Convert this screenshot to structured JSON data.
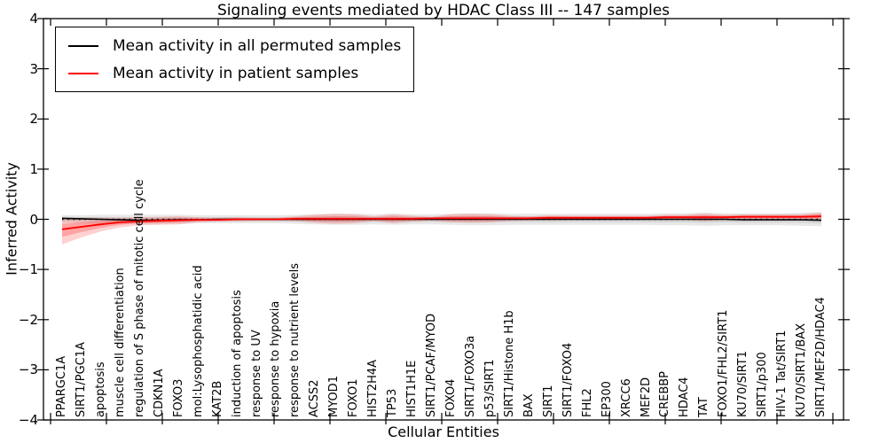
{
  "chart_data": {
    "type": "line",
    "title": "Signaling events mediated by HDAC Class III -- 147 samples",
    "xlabel": "Cellular Entities",
    "ylabel": "Inferred Activity",
    "ylim": [
      -4,
      4
    ],
    "yticks": [
      -4,
      -3,
      -2,
      -1,
      0,
      1,
      2,
      3,
      4
    ],
    "grid": false,
    "legend_position": "upper left",
    "zero_line": {
      "style": "dotted",
      "color": "#000000",
      "y": 0
    },
    "categories": [
      "PPARGC1A",
      "SIRT1/PGC1A",
      "apoptosis",
      "muscle cell differentiation",
      "regulation of S phase of mitotic cell cycle",
      "CDKN1A",
      "FOXO3",
      "mol:Lysophosphatidic acid",
      "KAT2B",
      "induction of apoptosis",
      "response to UV",
      "response to hypoxia",
      "response to nutrient levels",
      "ACSS2",
      "MYOD1",
      "FOXO1",
      "HIST2H4A",
      "TP53",
      "HIST1H1E",
      "SIRT1/PCAF/MYOD",
      "FOXO4",
      "SIRT1/FOXO3a",
      "p53/SIRT1",
      "SIRT1/Histone H1b",
      "BAX",
      "SIRT1",
      "SIRT1/FOXO4",
      "FHL2",
      "EP300",
      "XRCC6",
      "MEF2D",
      "CREBBP",
      "HDAC4",
      "TAT",
      "FOXO1/FHL2/SIRT1",
      "KU70/SIRT1",
      "SIRT1/p300",
      "HIV-1 Tat/SIRT1",
      "KU70/SIRT1/BAX",
      "SIRT1/MEF2D/HDAC4"
    ],
    "series": [
      {
        "name": "Mean activity in all permuted samples",
        "color": "#000000",
        "band_color": "#000000",
        "values": [
          0.02,
          0.01,
          0.0,
          -0.01,
          -0.02,
          -0.02,
          -0.01,
          -0.01,
          0.0,
          0.0,
          0.0,
          0.0,
          0.0,
          0.0,
          0.0,
          0.0,
          0.0,
          0.0,
          0.0,
          0.0,
          0.0,
          0.0,
          0.0,
          0.0,
          0.0,
          0.0,
          0.0,
          0.0,
          0.0,
          0.0,
          0.0,
          0.0,
          0.0,
          0.0,
          0.0,
          -0.01,
          -0.01,
          -0.01,
          -0.01,
          -0.02
        ],
        "band_lower": [
          -0.07,
          -0.08,
          -0.09,
          -0.09,
          -0.09,
          -0.09,
          -0.09,
          -0.08,
          -0.08,
          -0.08,
          -0.08,
          -0.08,
          -0.09,
          -0.1,
          -0.11,
          -0.11,
          -0.1,
          -0.11,
          -0.1,
          -0.1,
          -0.11,
          -0.12,
          -0.12,
          -0.11,
          -0.11,
          -0.11,
          -0.11,
          -0.11,
          -0.11,
          -0.11,
          -0.11,
          -0.12,
          -0.12,
          -0.13,
          -0.12,
          -0.12,
          -0.12,
          -0.12,
          -0.13,
          -0.14
        ],
        "band_upper": [
          0.08,
          0.08,
          0.09,
          0.09,
          0.09,
          0.09,
          0.09,
          0.08,
          0.08,
          0.08,
          0.08,
          0.08,
          0.09,
          0.1,
          0.11,
          0.11,
          0.1,
          0.11,
          0.1,
          0.1,
          0.11,
          0.12,
          0.12,
          0.11,
          0.11,
          0.11,
          0.11,
          0.11,
          0.11,
          0.11,
          0.11,
          0.12,
          0.12,
          0.13,
          0.12,
          0.12,
          0.12,
          0.12,
          0.13,
          0.14
        ]
      },
      {
        "name": "Mean activity in patient samples",
        "color": "#ff0000",
        "band_color": "#ff0000",
        "values": [
          -0.2,
          -0.15,
          -0.1,
          -0.06,
          -0.04,
          -0.03,
          -0.02,
          -0.01,
          -0.01,
          0.0,
          0.0,
          0.0,
          0.01,
          0.01,
          0.01,
          0.01,
          0.01,
          0.01,
          0.01,
          0.02,
          0.02,
          0.02,
          0.02,
          0.02,
          0.02,
          0.03,
          0.03,
          0.03,
          0.03,
          0.03,
          0.03,
          0.04,
          0.04,
          0.04,
          0.04,
          0.05,
          0.05,
          0.05,
          0.05,
          0.06
        ],
        "band_lower": [
          -0.5,
          -0.36,
          -0.24,
          -0.16,
          -0.12,
          -0.11,
          -0.1,
          -0.06,
          -0.05,
          -0.04,
          -0.03,
          -0.03,
          -0.04,
          -0.07,
          -0.09,
          -0.08,
          -0.04,
          -0.08,
          -0.05,
          -0.03,
          -0.06,
          -0.07,
          -0.06,
          -0.03,
          -0.02,
          -0.02,
          -0.01,
          -0.01,
          -0.01,
          -0.01,
          -0.01,
          -0.01,
          -0.01,
          -0.04,
          -0.01,
          0.0,
          0.0,
          0.0,
          0.0,
          -0.02
        ],
        "band_upper": [
          0.02,
          0.03,
          0.03,
          0.03,
          0.04,
          0.05,
          0.06,
          0.04,
          0.03,
          0.04,
          0.03,
          0.03,
          0.06,
          0.09,
          0.11,
          0.1,
          0.06,
          0.1,
          0.07,
          0.05,
          0.1,
          0.11,
          0.1,
          0.07,
          0.06,
          0.08,
          0.07,
          0.07,
          0.07,
          0.07,
          0.07,
          0.09,
          0.09,
          0.12,
          0.09,
          0.1,
          0.1,
          0.1,
          0.1,
          0.14
        ]
      }
    ]
  },
  "legend": {
    "items": [
      {
        "label": "Mean activity in all permuted samples",
        "color": "#000000"
      },
      {
        "label": "Mean activity in patient samples",
        "color": "#ff0000"
      }
    ]
  },
  "colors": {
    "background": "#ffffff",
    "axis": "#000000",
    "patient_line": "#ff0000",
    "permuted_line": "#000000"
  }
}
